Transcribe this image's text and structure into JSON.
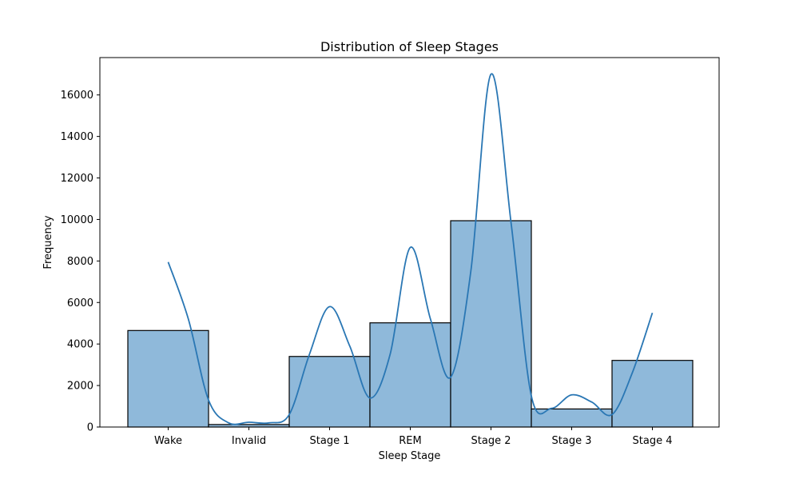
{
  "chart_data": {
    "type": "bar",
    "title": "Distribution of Sleep Stages",
    "xlabel": "Sleep Stage",
    "ylabel": "Frequency",
    "categories": [
      "Wake",
      "Invalid",
      "Stage 1",
      "REM",
      "Stage 2",
      "Stage 3",
      "Stage 4"
    ],
    "values": [
      4650,
      120,
      3400,
      5020,
      9940,
      870,
      3210
    ],
    "ylim": [
      0,
      17800
    ],
    "yticks": [
      0,
      2000,
      4000,
      6000,
      8000,
      10000,
      12000,
      14000,
      16000
    ],
    "kde": {
      "x": [
        0,
        0.25,
        0.5,
        0.75,
        1,
        1.25,
        1.5,
        1.75,
        2,
        2.25,
        2.5,
        2.75,
        3,
        3.25,
        3.5,
        3.75,
        4,
        4.25,
        4.5,
        4.75,
        5,
        5.25,
        5.5,
        5.75,
        6
      ],
      "y": [
        7950,
        5200,
        1300,
        200,
        230,
        200,
        600,
        3500,
        5800,
        3900,
        1400,
        3500,
        8650,
        5200,
        2400,
        7500,
        17000,
        9800,
        1500,
        900,
        1550,
        1200,
        600,
        2600,
        5500
      ]
    },
    "colors": {
      "bar_fill": "#8fb9da",
      "bar_edge": "#000000",
      "kde_line": "#2a77b4"
    },
    "grid": false,
    "legend": "none"
  }
}
